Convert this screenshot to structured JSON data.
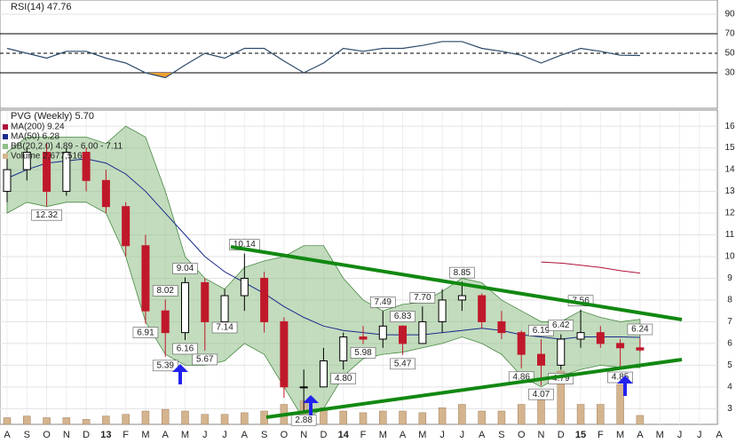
{
  "chart_data": {
    "type": "candlestick",
    "title": "PVG (Weekly) 5.70",
    "legend": [
      "MA(200) 9.24",
      "MA(50) 6.28",
      "BB(20,2.0) 4.89 - 6.00 - 7.11",
      "Volume 2,677,516"
    ],
    "categories": [
      "A",
      "S",
      "O",
      "N",
      "D",
      "13",
      "F",
      "M",
      "A",
      "M",
      "J",
      "J",
      "A",
      "S",
      "O",
      "N",
      "D",
      "14",
      "F",
      "M",
      "A",
      "M",
      "J",
      "J",
      "A",
      "S",
      "O",
      "N",
      "D",
      "15",
      "F",
      "M",
      "A",
      "M",
      "J",
      "J",
      "A"
    ],
    "open": [
      13.0,
      14.0,
      14.8,
      13.0,
      14.8,
      13.5,
      12.3,
      10.5,
      7.5,
      6.5,
      8.8,
      7.0,
      8.2,
      9.0,
      7.0,
      4.0,
      4.0,
      5.2,
      6.3,
      6.2,
      6.8,
      6.0,
      7.0,
      8.0,
      8.2,
      7.0,
      6.5,
      5.5,
      5.0,
      6.2,
      6.5,
      6.0,
      5.8,
      null,
      null,
      null,
      null
    ],
    "high": [
      14.5,
      15.0,
      15.2,
      15.0,
      15.0,
      14.0,
      12.5,
      11.0,
      8.02,
      9.04,
      9.0,
      8.5,
      10.14,
      9.3,
      7.2,
      4.8,
      5.8,
      6.5,
      6.8,
      7.49,
      6.83,
      7.7,
      8.5,
      8.85,
      8.3,
      7.5,
      6.6,
      6.19,
      6.42,
      7.56,
      6.8,
      6.2,
      6.24,
      null,
      null,
      null,
      null
    ],
    "low": [
      12.5,
      13.5,
      12.32,
      12.8,
      13.0,
      12.0,
      10.0,
      6.91,
      5.39,
      6.16,
      5.67,
      7.14,
      7.5,
      6.5,
      3.5,
      2.88,
      4.0,
      4.8,
      5.98,
      5.8,
      5.47,
      6.0,
      6.5,
      7.5,
      6.7,
      6.2,
      4.86,
      4.07,
      4.79,
      5.8,
      5.8,
      4.85,
      5.6,
      null,
      null,
      null,
      null
    ],
    "close": [
      14.0,
      14.8,
      13.0,
      14.8,
      13.5,
      12.3,
      10.5,
      7.5,
      6.5,
      8.8,
      7.0,
      8.2,
      9.0,
      7.0,
      4.0,
      4.0,
      5.2,
      6.3,
      6.2,
      6.8,
      6.0,
      7.0,
      8.0,
      8.2,
      7.0,
      6.5,
      5.5,
      5.0,
      6.2,
      6.5,
      6.0,
      5.8,
      5.7,
      null,
      null,
      null,
      null
    ],
    "high_value_labels": [
      null,
      null,
      null,
      null,
      null,
      null,
      null,
      null,
      "8.02",
      "9.04",
      null,
      null,
      "10.14",
      null,
      null,
      null,
      null,
      null,
      null,
      "7.49",
      "6.83",
      "7.70",
      null,
      "8.85",
      null,
      null,
      null,
      "6.19",
      "6.42",
      "7.56",
      null,
      null,
      "6.24",
      null,
      null,
      null,
      null
    ],
    "low_value_labels": [
      null,
      null,
      "12.32",
      null,
      null,
      null,
      null,
      "6.91",
      "5.39",
      "6.16",
      "5.67",
      "7.14",
      null,
      null,
      null,
      "2.88",
      null,
      "4.80",
      "5.98",
      null,
      "5.47",
      null,
      null,
      null,
      null,
      null,
      "4.86",
      "4.07",
      "4.79",
      null,
      null,
      "4.85",
      null,
      null,
      null,
      null,
      null
    ],
    "up_color": "#000000",
    "down_color": "#c0182b",
    "ma200": {
      "color": "#b0103a",
      "values": [
        null,
        null,
        null,
        null,
        null,
        null,
        null,
        null,
        null,
        null,
        null,
        null,
        null,
        null,
        null,
        null,
        null,
        null,
        null,
        null,
        null,
        null,
        null,
        null,
        null,
        null,
        null,
        9.75,
        9.7,
        9.6,
        9.5,
        9.35,
        9.24,
        null,
        null,
        null,
        null
      ]
    },
    "ma50": {
      "color": "#1a2a8c",
      "values": [
        13.6,
        14.0,
        14.3,
        14.4,
        14.5,
        14.3,
        13.8,
        13.0,
        12.0,
        11.0,
        10.0,
        9.3,
        8.8,
        8.3,
        7.7,
        7.2,
        6.8,
        6.6,
        6.5,
        6.4,
        6.4,
        6.4,
        6.5,
        6.6,
        6.7,
        6.6,
        6.4,
        6.3,
        6.2,
        6.3,
        6.3,
        6.3,
        6.28,
        null,
        null,
        null,
        null
      ]
    },
    "bb": {
      "color": "#8fbf86",
      "upper": [
        14.8,
        15.5,
        15.5,
        15.5,
        15.5,
        15.2,
        16.0,
        15.5,
        13.0,
        10.0,
        9.0,
        8.5,
        9.5,
        9.8,
        10.0,
        10.5,
        10.5,
        9.0,
        8.0,
        7.5,
        7.8,
        7.9,
        8.4,
        9.0,
        8.8,
        8.0,
        7.5,
        7.0,
        7.0,
        7.5,
        7.2,
        7.0,
        7.11,
        null,
        null,
        null,
        null
      ],
      "lower": [
        12.0,
        12.5,
        12.3,
        12.5,
        12.5,
        12.0,
        10.0,
        7.0,
        5.5,
        5.0,
        5.0,
        5.2,
        6.0,
        5.5,
        4.0,
        2.5,
        3.0,
        4.5,
        5.3,
        5.5,
        5.6,
        5.8,
        6.0,
        6.3,
        6.0,
        5.5,
        4.5,
        4.0,
        4.5,
        4.8,
        5.0,
        4.9,
        4.89,
        null,
        null,
        null,
        null
      ]
    },
    "volume": {
      "color": "#d4b48e",
      "values": [
        2000000,
        2500000,
        2000000,
        2000000,
        1500000,
        2500000,
        3000000,
        4000000,
        4500000,
        4000000,
        3000000,
        3000000,
        3500000,
        4000000,
        6000000,
        7000000,
        5000000,
        4000000,
        3500000,
        4000000,
        4000000,
        3500000,
        5000000,
        6000000,
        4000000,
        4000000,
        6000000,
        8000000,
        16000000,
        6000000,
        6000000,
        12000000,
        2677516,
        null,
        null,
        null,
        null
      ]
    },
    "ylim": [
      2.4,
      16.7
    ],
    "yticks": [
      3,
      4,
      5,
      6,
      7,
      8,
      9,
      10,
      11,
      12,
      13,
      14,
      15,
      16
    ],
    "grid": true,
    "rsi": {
      "title": "RSI(14) 47.76",
      "color": "#2c4a6a",
      "fill_color": "#f0a030",
      "values": [
        55,
        50,
        45,
        52,
        52,
        45,
        40,
        30,
        25,
        38,
        50,
        45,
        55,
        55,
        42,
        30,
        40,
        55,
        52,
        55,
        55,
        58,
        62,
        62,
        55,
        52,
        48,
        40,
        48,
        55,
        52,
        48,
        47.76,
        null,
        null,
        null,
        null
      ],
      "ylim": [
        0,
        100
      ],
      "yticks": [
        30,
        50,
        70,
        90
      ],
      "oversold": 30,
      "overbought": 70
    }
  }
}
